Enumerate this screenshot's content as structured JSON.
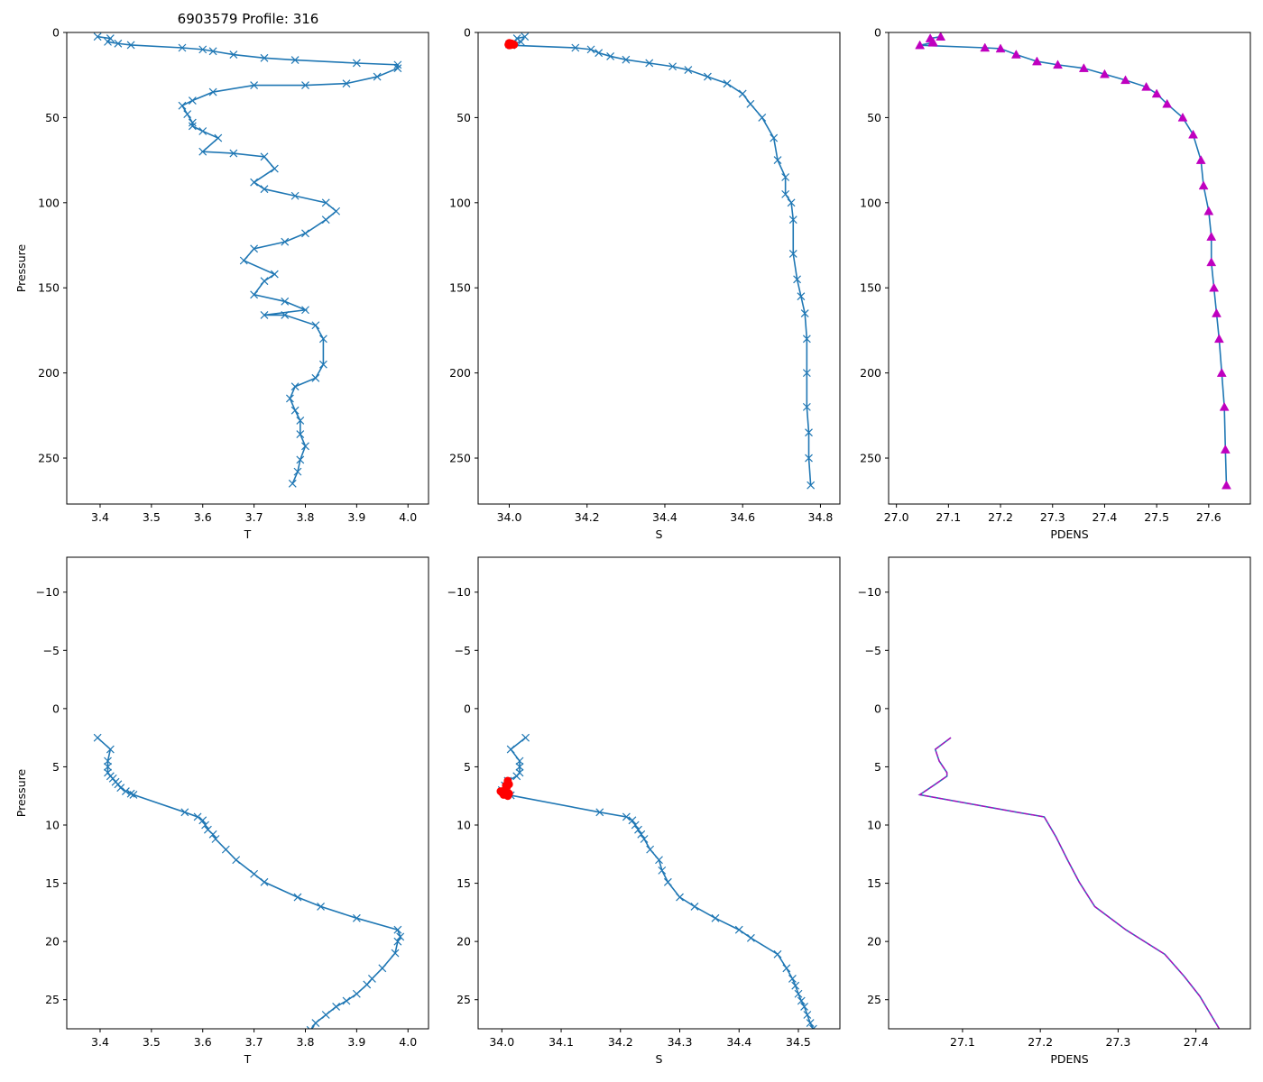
{
  "figure_title": "6903579 Profile: 316",
  "colors": {
    "series": "#1f77b4",
    "flag": "#ff0000",
    "density": "#bf00bf"
  },
  "chart_data": [
    {
      "id": "top-temperature",
      "type": "line",
      "title": "6903579 Profile: 316",
      "xlabel": "T",
      "ylabel": "Pressure",
      "xlim": [
        3.335,
        4.04
      ],
      "ylim": [
        277,
        0
      ],
      "xticks": [
        3.4,
        3.5,
        3.6,
        3.7,
        3.8,
        3.9,
        4.0
      ],
      "xtick_labels": [
        "3.4",
        "3.5",
        "3.6",
        "3.7",
        "3.8",
        "3.9",
        "4.0"
      ],
      "yticks": [
        0,
        50,
        100,
        150,
        200,
        250
      ],
      "ytick_labels": [
        "0",
        "50",
        "100",
        "150",
        "200",
        "250"
      ],
      "marker": "x",
      "series": [
        {
          "name": "T",
          "x": [
            3.395,
            3.42,
            3.415,
            3.435,
            3.46,
            3.56,
            3.6,
            3.62,
            3.66,
            3.72,
            3.78,
            3.9,
            3.98,
            3.98,
            3.94,
            3.88,
            3.8,
            3.7,
            3.62,
            3.58,
            3.56,
            3.57,
            3.58,
            3.58,
            3.6,
            3.63,
            3.6,
            3.66,
            3.72,
            3.74,
            3.7,
            3.72,
            3.78,
            3.84,
            3.86,
            3.84,
            3.8,
            3.76,
            3.7,
            3.68,
            3.74,
            3.72,
            3.7,
            3.76,
            3.8,
            3.72,
            3.76,
            3.82,
            3.835,
            3.835,
            3.82,
            3.78,
            3.77,
            3.78,
            3.79,
            3.79,
            3.8,
            3.79,
            3.785,
            3.775
          ],
          "y": [
            2.5,
            3.5,
            5.5,
            6.5,
            7.4,
            9,
            10,
            11,
            13,
            15,
            16.2,
            18,
            19,
            21,
            26,
            30,
            31,
            31,
            35,
            40,
            43,
            48,
            53,
            55,
            58,
            62,
            70,
            71,
            73,
            80,
            88,
            92,
            96,
            100,
            105,
            110,
            118,
            123,
            127,
            134,
            142,
            146,
            154,
            158,
            163,
            166,
            166,
            172,
            180,
            195,
            203,
            208,
            215,
            222,
            228,
            236,
            243,
            251,
            258,
            265
          ]
        }
      ]
    },
    {
      "id": "top-salinity",
      "type": "line",
      "title": "",
      "xlabel": "S",
      "ylabel": "",
      "xlim": [
        33.92,
        34.85
      ],
      "ylim": [
        277,
        0
      ],
      "xticks": [
        34.0,
        34.2,
        34.4,
        34.6,
        34.8
      ],
      "xtick_labels": [
        "34.0",
        "34.2",
        "34.4",
        "34.6",
        "34.8"
      ],
      "yticks": [
        0,
        50,
        100,
        150,
        200,
        250
      ],
      "ytick_labels": [
        "0",
        "50",
        "100",
        "150",
        "200",
        "250"
      ],
      "marker": "x",
      "series": [
        {
          "name": "S",
          "x": [
            34.04,
            34.02,
            34.03,
            34.01,
            34.0,
            34.005,
            34.17,
            34.21,
            34.23,
            34.26,
            34.3,
            34.36,
            34.42,
            34.46,
            34.51,
            34.56,
            34.6,
            34.62,
            34.65,
            34.68,
            34.69,
            34.71,
            34.71,
            34.725,
            34.73,
            34.73,
            34.74,
            34.75,
            34.76,
            34.765,
            34.765,
            34.765,
            34.77,
            34.77,
            34.775
          ],
          "y": [
            2.5,
            3.5,
            5.5,
            6.5,
            7,
            7.5,
            9,
            10,
            12,
            14,
            16,
            18,
            20,
            22,
            26,
            30,
            36,
            42,
            50,
            62,
            75,
            85,
            95,
            100,
            110,
            130,
            145,
            155,
            165,
            180,
            200,
            220,
            235,
            250,
            266
          ]
        }
      ],
      "flags": {
        "name": "flagged",
        "x": [
          34.0,
          34.005,
          34.008,
          34.01,
          34.012,
          34.003,
          34.0,
          34.01,
          33.998,
          34.006
        ],
        "y": [
          6.2,
          6.5,
          6.8,
          7.0,
          7.2,
          7.4,
          7.5,
          6.9,
          7.1,
          6.6
        ]
      }
    },
    {
      "id": "top-density",
      "type": "line",
      "title": "",
      "xlabel": "PDENS",
      "ylabel": "",
      "xlim": [
        26.985,
        27.68
      ],
      "ylim": [
        277,
        0
      ],
      "xticks": [
        27.0,
        27.1,
        27.2,
        27.3,
        27.4,
        27.5,
        27.6
      ],
      "xtick_labels": [
        "27.0",
        "27.1",
        "27.2",
        "27.3",
        "27.4",
        "27.5",
        "27.6"
      ],
      "yticks": [
        0,
        50,
        100,
        150,
        200,
        250
      ],
      "ytick_labels": [
        "0",
        "50",
        "100",
        "150",
        "200",
        "250"
      ],
      "marker": "^",
      "series": [
        {
          "name": "PDENS",
          "x": [
            27.085,
            27.065,
            27.07,
            27.07,
            27.045,
            27.17,
            27.2,
            27.23,
            27.27,
            27.31,
            27.36,
            27.4,
            27.44,
            27.48,
            27.5,
            27.52,
            27.55,
            27.57,
            27.585,
            27.59,
            27.6,
            27.605,
            27.605,
            27.61,
            27.615,
            27.62,
            27.625,
            27.63,
            27.632,
            27.634
          ],
          "y": [
            2.5,
            3.5,
            5.5,
            6,
            7.5,
            9,
            9.5,
            13,
            17,
            19,
            21,
            24.5,
            28,
            32,
            36,
            42,
            50,
            60,
            75,
            90,
            105,
            120,
            135,
            150,
            165,
            180,
            200,
            220,
            245,
            266
          ]
        }
      ]
    },
    {
      "id": "bottom-temperature",
      "type": "line",
      "title": "",
      "xlabel": "T",
      "ylabel": "Pressure",
      "xlim": [
        3.335,
        4.04
      ],
      "ylim": [
        27.5,
        -13
      ],
      "xticks": [
        3.4,
        3.5,
        3.6,
        3.7,
        3.8,
        3.9,
        4.0
      ],
      "xtick_labels": [
        "3.4",
        "3.5",
        "3.6",
        "3.7",
        "3.8",
        "3.9",
        "4.0"
      ],
      "yticks": [
        -10,
        -5,
        0,
        5,
        10,
        15,
        20,
        25
      ],
      "ytick_labels": [
        "−10",
        "−5",
        "0",
        "5",
        "10",
        "15",
        "20",
        "25"
      ],
      "marker": "x",
      "series": [
        {
          "name": "T",
          "x": [
            3.395,
            3.42,
            3.415,
            3.415,
            3.415,
            3.42,
            3.425,
            3.43,
            3.435,
            3.44,
            3.45,
            3.46,
            3.465,
            3.565,
            3.59,
            3.6,
            3.605,
            3.61,
            3.62,
            3.625,
            3.645,
            3.665,
            3.7,
            3.72,
            3.785,
            3.83,
            3.9,
            3.98,
            3.985,
            3.98,
            3.975,
            3.95,
            3.93,
            3.92,
            3.9,
            3.88,
            3.86,
            3.84,
            3.82,
            3.81
          ],
          "y": [
            2.5,
            3.5,
            4.5,
            5.0,
            5.5,
            5.8,
            6.0,
            6.3,
            6.5,
            6.8,
            7.1,
            7.3,
            7.4,
            8.9,
            9.3,
            9.6,
            10.0,
            10.4,
            10.8,
            11.2,
            12.1,
            13.0,
            14.2,
            14.9,
            16.2,
            17.0,
            18.0,
            19.0,
            19.6,
            20.0,
            21.0,
            22.3,
            23.2,
            23.7,
            24.5,
            25.1,
            25.6,
            26.3,
            27.0,
            27.6
          ]
        }
      ]
    },
    {
      "id": "bottom-salinity",
      "type": "line",
      "title": "",
      "xlabel": "S",
      "ylabel": "",
      "xlim": [
        33.96,
        34.57
      ],
      "ylim": [
        27.5,
        -13
      ],
      "xticks": [
        34.0,
        34.1,
        34.2,
        34.3,
        34.4,
        34.5
      ],
      "xtick_labels": [
        "34.0",
        "34.1",
        "34.2",
        "34.3",
        "34.4",
        "34.5"
      ],
      "yticks": [
        -10,
        -5,
        0,
        5,
        10,
        15,
        20,
        25
      ],
      "ytick_labels": [
        "−10",
        "−5",
        "0",
        "5",
        "10",
        "15",
        "20",
        "25"
      ],
      "marker": "x",
      "series": [
        {
          "name": "S",
          "x": [
            34.04,
            34.015,
            34.03,
            34.03,
            34.03,
            34.025,
            34.01,
            34.005,
            34.0,
            34.005,
            34.015,
            34.165,
            34.21,
            34.22,
            34.225,
            34.23,
            34.235,
            34.24,
            34.25,
            34.265,
            34.27,
            34.28,
            34.3,
            34.325,
            34.36,
            34.4,
            34.42,
            34.465,
            34.48,
            34.49,
            34.495,
            34.5,
            34.505,
            34.51,
            34.515,
            34.52,
            34.525
          ],
          "y": [
            2.5,
            3.5,
            4.5,
            5.0,
            5.5,
            5.8,
            6.2,
            6.6,
            7.0,
            7.3,
            7.45,
            8.9,
            9.3,
            9.6,
            10.0,
            10.4,
            10.8,
            11.2,
            12.1,
            13.0,
            13.9,
            14.9,
            16.2,
            17.0,
            18.0,
            19.0,
            19.7,
            21.1,
            22.3,
            23.2,
            23.8,
            24.5,
            25.1,
            25.6,
            26.3,
            27.0,
            27.5
          ]
        }
      ],
      "flags": {
        "name": "flagged",
        "x": [
          34.01,
          34.012,
          34.008,
          34.005,
          34.0,
          34.003,
          34.01,
          33.998,
          34.007,
          34.012
        ],
        "y": [
          6.2,
          6.5,
          6.8,
          7.0,
          7.2,
          7.4,
          7.5,
          7.1,
          6.6,
          7.3
        ]
      }
    },
    {
      "id": "bottom-density",
      "type": "line",
      "title": "",
      "xlabel": "PDENS",
      "ylabel": "",
      "xlim": [
        27.005,
        27.47
      ],
      "ylim": [
        27.5,
        -13
      ],
      "xticks": [
        27.1,
        27.2,
        27.3,
        27.4
      ],
      "xtick_labels": [
        "27.1",
        "27.2",
        "27.3",
        "27.4"
      ],
      "yticks": [
        -10,
        -5,
        0,
        5,
        10,
        15,
        20,
        25
      ],
      "ytick_labels": [
        "−10",
        "−5",
        "0",
        "5",
        "10",
        "15",
        "20",
        "25"
      ],
      "marker": "none",
      "series": [
        {
          "name": "PDENS",
          "x": [
            27.085,
            27.065,
            27.07,
            27.08,
            27.08,
            27.065,
            27.045,
            27.17,
            27.205,
            27.22,
            27.235,
            27.25,
            27.27,
            27.31,
            27.36,
            27.385,
            27.405,
            27.43
          ],
          "y": [
            2.5,
            3.5,
            4.5,
            5.5,
            5.8,
            6.5,
            7.4,
            8.9,
            9.3,
            11.0,
            13.0,
            14.9,
            17.0,
            19.0,
            21.1,
            23.0,
            24.7,
            27.5
          ]
        }
      ]
    }
  ]
}
